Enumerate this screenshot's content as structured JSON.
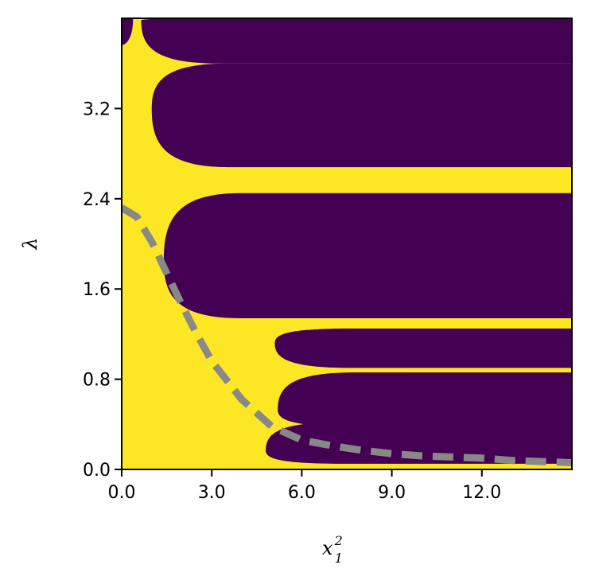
{
  "chart_data": {
    "type": "heatmap",
    "title": "",
    "xlabel": {
      "base": "x",
      "sub": "1",
      "sup": "2"
    },
    "ylabel": "λ",
    "xlim": [
      0,
      15
    ],
    "ylim": [
      0,
      4.0
    ],
    "x_ticks": [
      0,
      3,
      6,
      9,
      12
    ],
    "x_tick_labels": [
      "0.0",
      "3.0",
      "6.0",
      "9.0",
      "12.0"
    ],
    "y_ticks": [
      0,
      0.8,
      1.6,
      2.4,
      3.2
    ],
    "y_tick_labels": [
      "0.0",
      "0.8",
      "1.6",
      "2.4",
      "3.2"
    ],
    "colors": {
      "background_region": "#fde725",
      "lobe_region": "#440154",
      "curve": "#888888",
      "axes": "#000000"
    },
    "lobes": [
      {
        "top": 0.42,
        "nose": 0.168,
        "bottom": 0.05,
        "nose_x": 4.8
      },
      {
        "top": 0.86,
        "nose": 0.53,
        "bottom": 0.38,
        "nose_x": 5.2
      },
      {
        "top": 1.25,
        "nose": 1.12,
        "bottom": 0.9,
        "nose_x": 5.1
      },
      {
        "top": 2.45,
        "nose": 1.85,
        "bottom": 1.34,
        "nose_x": 1.4
      },
      {
        "top": 3.6,
        "nose": 3.2,
        "bottom": 2.68,
        "nose_x": 1.0
      },
      {
        "top": 4.0,
        "nose": 3.98,
        "bottom": 3.6,
        "nose_x": 0.65
      }
    ],
    "corner_lobe": {
      "top": 4.0,
      "bottom": 3.76,
      "x_end": 0.38
    },
    "dashed_curve": {
      "style": "dashed",
      "x": [
        0,
        0.5,
        1.0,
        1.5,
        2.0,
        2.5,
        3.0,
        4.0,
        5.0,
        6.0,
        7.0,
        8.0,
        9.0,
        10.0,
        11.0,
        12.0,
        13.0,
        14.0,
        15.0
      ],
      "y": [
        2.32,
        2.24,
        2.02,
        1.74,
        1.46,
        1.2,
        0.96,
        0.62,
        0.38,
        0.26,
        0.21,
        0.17,
        0.14,
        0.12,
        0.11,
        0.1,
        0.08,
        0.07,
        0.06
      ]
    }
  }
}
